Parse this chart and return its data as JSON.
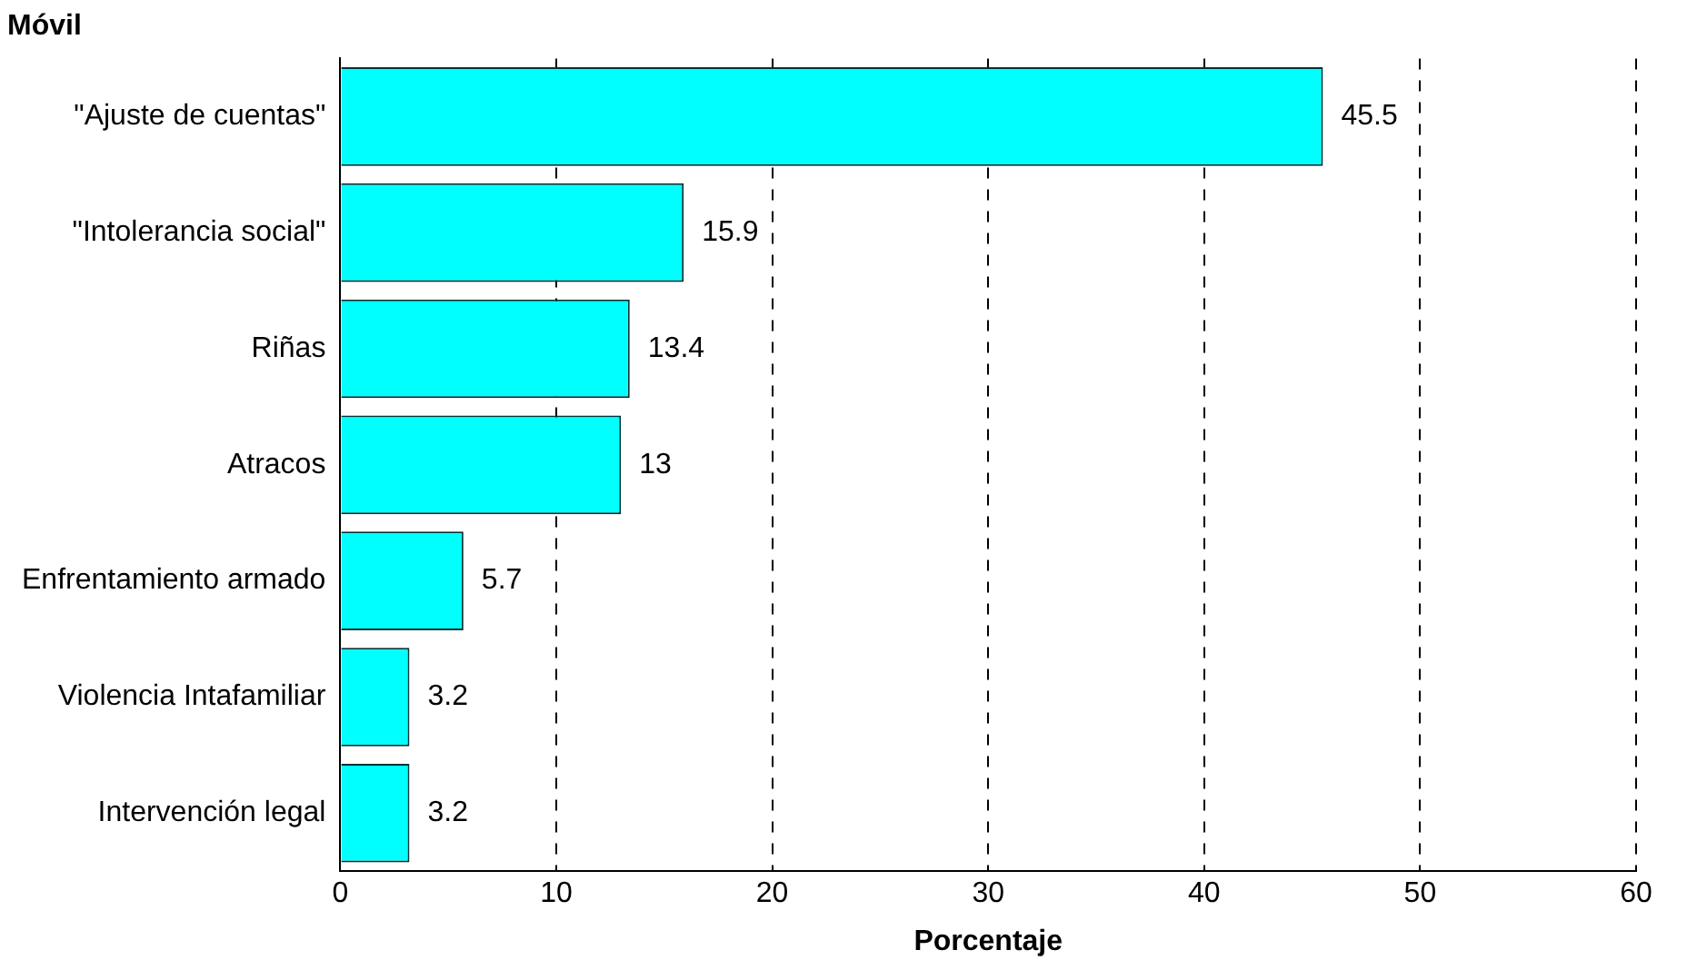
{
  "chart_data": {
    "type": "bar",
    "orientation": "horizontal",
    "title": "Móvil",
    "xlabel": "Porcentaje",
    "categories": [
      "\"Ajuste de cuentas\"",
      "\"Intolerancia social\"",
      "Riñas",
      "Atracos",
      "Enfrentamiento armado",
      "Violencia Intafamiliar",
      "Intervención legal"
    ],
    "values": [
      45.5,
      15.9,
      13.4,
      13,
      5.7,
      3.2,
      3.2
    ],
    "color": "#00ffff",
    "xlim": [
      0,
      60
    ],
    "xticks": [
      0,
      10,
      20,
      30,
      40,
      50,
      60
    ],
    "grid": "x",
    "data_labels": true,
    "legend": false
  }
}
